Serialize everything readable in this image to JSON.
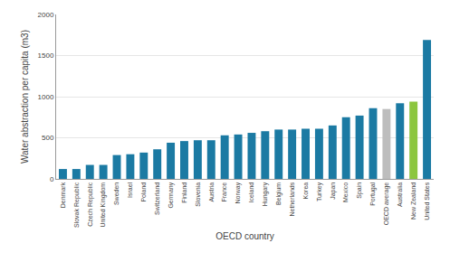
{
  "chart_data": {
    "type": "bar",
    "categories": [
      "Denmark",
      "Slovak Republic",
      "Czech Republic",
      "United Kingdom",
      "Sweden",
      "Israel",
      "Poland",
      "Switzerland",
      "Germany",
      "Finland",
      "Slovenia",
      "Austria",
      "France",
      "Norway",
      "Iceland",
      "Hungary",
      "Belgium",
      "Netherlands",
      "Korea",
      "Turkey",
      "Japan",
      "Mexico",
      "Spain",
      "Portugal",
      "OECD average",
      "Australia",
      "New Zealand",
      "United States"
    ],
    "values": [
      120,
      120,
      170,
      170,
      290,
      300,
      320,
      360,
      440,
      460,
      470,
      470,
      530,
      540,
      560,
      580,
      600,
      600,
      610,
      610,
      650,
      750,
      770,
      860,
      850,
      920,
      940,
      1690
    ],
    "colors": [
      "#1b7aa3",
      "#1b7aa3",
      "#1b7aa3",
      "#1b7aa3",
      "#1b7aa3",
      "#1b7aa3",
      "#1b7aa3",
      "#1b7aa3",
      "#1b7aa3",
      "#1b7aa3",
      "#1b7aa3",
      "#1b7aa3",
      "#1b7aa3",
      "#1b7aa3",
      "#1b7aa3",
      "#1b7aa3",
      "#1b7aa3",
      "#1b7aa3",
      "#1b7aa3",
      "#1b7aa3",
      "#1b7aa3",
      "#1b7aa3",
      "#1b7aa3",
      "#1b7aa3",
      "#bdbdbd",
      "#1b7aa3",
      "#8cc63f",
      "#1b7aa3"
    ],
    "x_label": "OECD country",
    "y_label": "Water abstraction per capita (m3)",
    "ylim": [
      0,
      2000
    ],
    "yticks": [
      0,
      500,
      1000,
      1500,
      2000
    ],
    "grid": true
  }
}
